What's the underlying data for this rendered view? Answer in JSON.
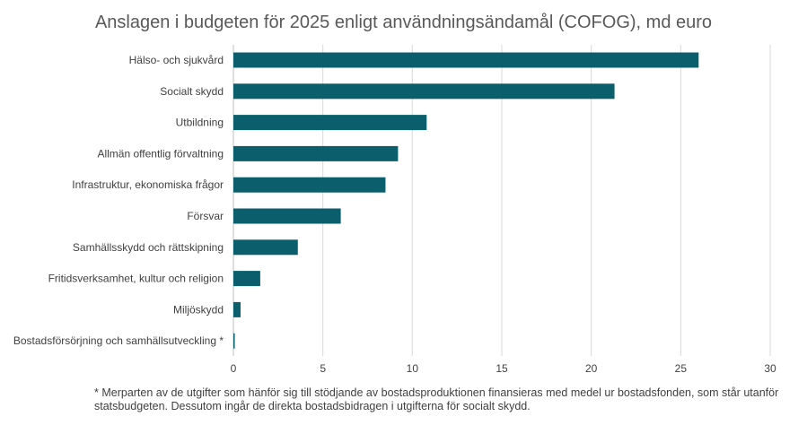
{
  "chart_data": {
    "type": "bar",
    "orientation": "horizontal",
    "title": "Anslagen i budgeten för 2025 enligt användningsändamål (COFOG), md euro",
    "categories": [
      "Hälso- och sjukvård",
      "Socialt skydd",
      "Utbildning",
      "Allmän offentlig förvaltning",
      "Infrastruktur, ekonomiska frågor",
      "Försvar",
      "Samhällsskydd och rättskipning",
      "Fritidsverksamhet, kultur och religion",
      "Miljöskydd",
      "Bostadsförsörjning och samhällsutveckling *"
    ],
    "values": [
      26.0,
      21.3,
      10.8,
      9.2,
      8.5,
      6.0,
      3.6,
      1.5,
      0.4,
      0.05
    ],
    "xlabel": "",
    "ylabel": "",
    "xlim": [
      0,
      30
    ],
    "xticks": [
      "0",
      "5",
      "10",
      "15",
      "20",
      "25",
      "30"
    ],
    "grid": true,
    "bar_color": "#0b5e6b",
    "grid_color": "#d9d9d9",
    "footnote": "* Merparten av de utgifter som hänför sig till stödjande av bostadsproduktionen finansieras med medel ur bostadsfonden, som står utanför statsbudgeten. Dessutom ingår de direkta bostadsbidragen i utgifterna för socialt skydd."
  }
}
